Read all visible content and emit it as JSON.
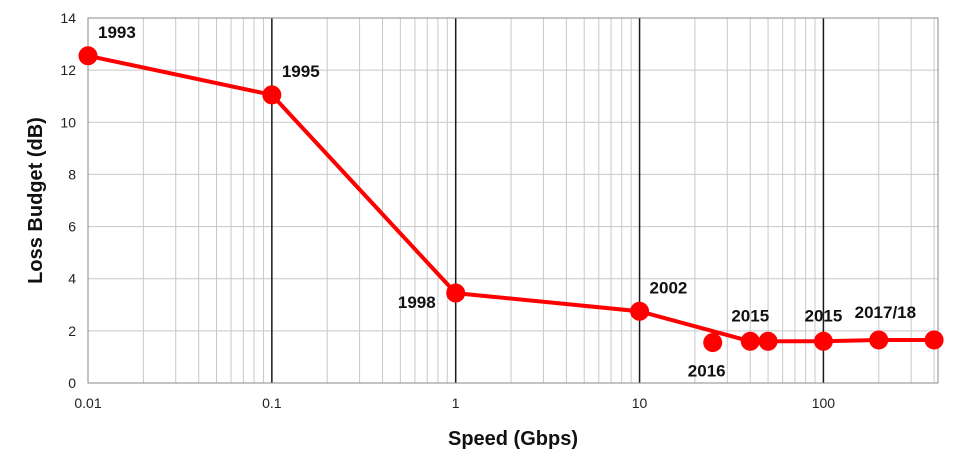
{
  "chart_data": {
    "type": "line",
    "title": "",
    "xlabel": "Speed (Gbps)",
    "ylabel": "Loss Budget (dB)",
    "x_scale": "log",
    "xlim": [
      0.01,
      420
    ],
    "ylim": [
      0,
      14
    ],
    "x_ticks": [
      0.01,
      0.1,
      1,
      10,
      100
    ],
    "x_tick_labels": [
      "0.01",
      "0.1",
      "1",
      "10",
      "100"
    ],
    "y_ticks": [
      0,
      2,
      4,
      6,
      8,
      10,
      12,
      14
    ],
    "y_tick_labels": [
      "0",
      "2",
      "4",
      "6",
      "8",
      "10",
      "12",
      "14"
    ],
    "grid": true,
    "legend": "none",
    "color": "#ff0000",
    "series": [
      {
        "points": [
          {
            "x": 0.01,
            "y": 12.55
          },
          {
            "x": 0.1,
            "y": 11.05
          },
          {
            "x": 1,
            "y": 3.45
          },
          {
            "x": 10,
            "y": 2.75
          },
          {
            "x": 40,
            "y": 1.6
          },
          {
            "x": 50,
            "y": 1.6
          },
          {
            "x": 100,
            "y": 1.6
          },
          {
            "x": 200,
            "y": 1.65
          },
          {
            "x": 400,
            "y": 1.65
          }
        ]
      }
    ],
    "extra_points": [
      {
        "x": 25,
        "y": 1.55
      }
    ],
    "annotations": [
      {
        "text": "1993",
        "x": 0.01,
        "y": 12.55,
        "placement": "upper-right"
      },
      {
        "text": "1995",
        "x": 0.1,
        "y": 11.05,
        "placement": "upper-right"
      },
      {
        "text": "1998",
        "x": 1,
        "y": 3.45,
        "placement": "lower-left"
      },
      {
        "text": "2002",
        "x": 10,
        "y": 2.75,
        "placement": "upper-right"
      },
      {
        "text": "2015",
        "x": 40,
        "y": 1.6,
        "placement": "above"
      },
      {
        "text": "2016",
        "x": 25,
        "y": 1.55,
        "placement": "below"
      },
      {
        "text": "2015",
        "x": 100,
        "y": 1.6,
        "placement": "above"
      },
      {
        "text": "2017/18",
        "x": 400,
        "y": 1.65,
        "placement": "above-left"
      }
    ]
  }
}
